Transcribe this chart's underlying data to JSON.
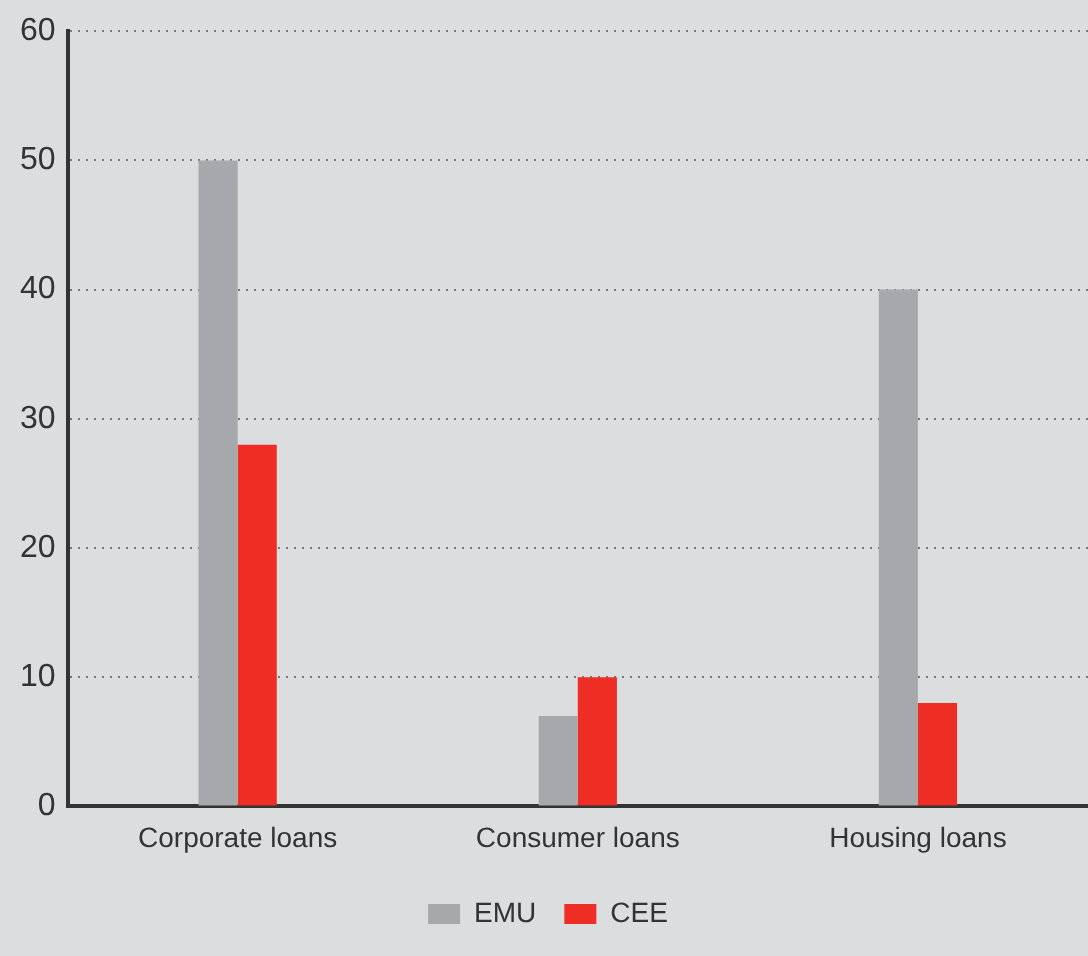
{
  "chart_data": {
    "type": "bar",
    "categories": [
      "Corporate loans",
      "Consumer loans",
      "Housing loans"
    ],
    "series": [
      {
        "name": "EMU",
        "color": "#a7a8ab",
        "values": [
          50,
          7,
          40
        ]
      },
      {
        "name": "CEE",
        "color": "#ee2d24",
        "values": [
          28,
          10,
          8
        ]
      }
    ],
    "ylim": [
      0,
      60
    ],
    "yticks": [
      0,
      10,
      20,
      30,
      40,
      50,
      60
    ],
    "grid": "y",
    "legend": "bottom"
  }
}
